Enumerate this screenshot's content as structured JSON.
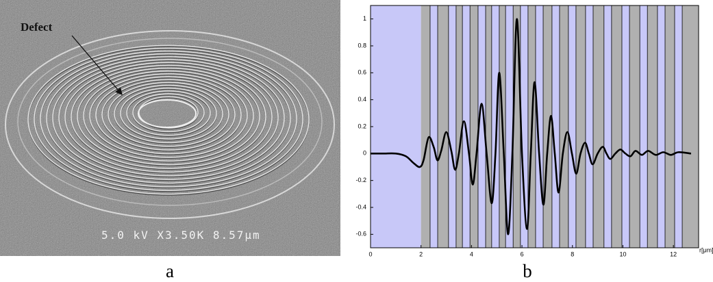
{
  "panel_a": {
    "label": "a",
    "annotation": "Defect",
    "micrograph_info": "5.0 kV X3.50K 8.57μm"
  },
  "panel_b": {
    "label": "b"
  },
  "chart_data": {
    "type": "line",
    "x_label": "r[μm]",
    "xlim": [
      0,
      13
    ],
    "ylim": [
      -0.7,
      1.1
    ],
    "xticks": [
      0,
      2,
      4,
      6,
      8,
      10,
      12
    ],
    "yticks": [
      -0.6,
      -0.4,
      -0.2,
      0,
      0.2,
      0.4,
      0.6,
      0.8,
      1
    ],
    "regions": [
      {
        "x": [
          0,
          2
        ],
        "color": "#c8c8f8"
      },
      {
        "x": [
          2,
          13
        ],
        "color": "#b0b0b0"
      }
    ],
    "slot_color": "#c8c8f8",
    "slots": [
      [
        2.36,
        2.66
      ],
      [
        3.09,
        3.39
      ],
      [
        3.64,
        3.94
      ],
      [
        4.26,
        4.56
      ],
      [
        4.8,
        5.1
      ],
      [
        5.35,
        5.65
      ],
      [
        5.94,
        6.24
      ],
      [
        6.54,
        6.84
      ],
      [
        7.19,
        7.49
      ],
      [
        7.84,
        8.14
      ],
      [
        8.52,
        8.82
      ],
      [
        9.25,
        9.55
      ],
      [
        9.96,
        10.26
      ],
      [
        10.67,
        10.97
      ],
      [
        11.37,
        11.67
      ],
      [
        12.05,
        12.35
      ]
    ],
    "series": [
      {
        "color": "#000000",
        "x": [
          0,
          0.5,
          1.0,
          1.4,
          1.7,
          1.95,
          2.1,
          2.3,
          2.5,
          2.65,
          2.8,
          3.0,
          3.2,
          3.35,
          3.5,
          3.7,
          3.9,
          4.05,
          4.2,
          4.4,
          4.6,
          4.8,
          4.95,
          5.1,
          5.28,
          5.45,
          5.62,
          5.8,
          6.0,
          6.2,
          6.35,
          6.5,
          6.68,
          6.85,
          7.0,
          7.15,
          7.3,
          7.45,
          7.62,
          7.8,
          7.98,
          8.15,
          8.32,
          8.5,
          8.65,
          8.8,
          9.0,
          9.2,
          9.35,
          9.5,
          9.7,
          9.9,
          10.1,
          10.3,
          10.5,
          10.75,
          11.0,
          11.3,
          11.6,
          11.9,
          12.2,
          12.7
        ],
        "values": [
          0,
          0,
          0,
          -0.02,
          -0.07,
          -0.1,
          -0.05,
          0.12,
          0.05,
          -0.05,
          0.02,
          0.16,
          0.02,
          -0.12,
          0.0,
          0.24,
          0.0,
          -0.23,
          0.0,
          0.37,
          0.0,
          -0.37,
          0.0,
          0.6,
          0.0,
          -0.6,
          0.0,
          1.0,
          0.0,
          -0.56,
          0.0,
          0.53,
          0.0,
          -0.38,
          0.0,
          0.28,
          0.0,
          -0.29,
          0.0,
          0.16,
          0.0,
          -0.15,
          0.0,
          0.08,
          0.0,
          -0.08,
          0.0,
          0.05,
          0.0,
          -0.04,
          0.0,
          0.03,
          0.0,
          -0.02,
          0.02,
          -0.01,
          0.02,
          -0.01,
          0.01,
          -0.01,
          0.01,
          0.0
        ]
      }
    ]
  }
}
